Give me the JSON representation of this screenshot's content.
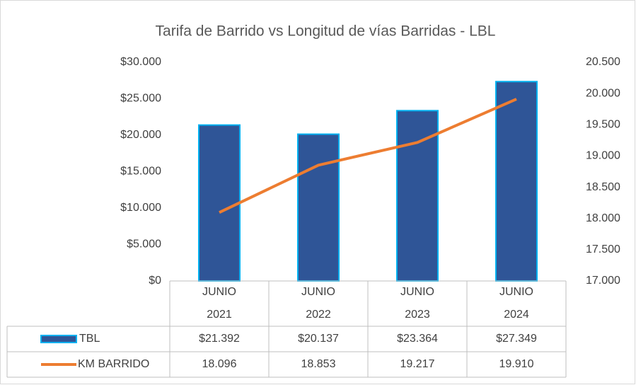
{
  "chart_data": {
    "type": "bar",
    "title": "Tarifa de Barrido vs Longitud de vías Barridas - LBL",
    "categories": [
      [
        "JUNIO",
        "2021"
      ],
      [
        "JUNIO",
        "2022"
      ],
      [
        "JUNIO",
        "2023"
      ],
      [
        "JUNIO",
        "2024"
      ]
    ],
    "series": [
      {
        "name": "TBL",
        "type": "bar",
        "color": "#2f5597",
        "edge_color": "#00b0f0",
        "values": [
          21392,
          20137,
          23364,
          27349
        ],
        "value_labels": [
          "$21.392",
          "$20.137",
          "$23.364",
          "$27.349"
        ]
      },
      {
        "name": "KM BARRIDO",
        "type": "line",
        "axis": "y2",
        "color": "#ed7d31",
        "values": [
          18096,
          18853,
          19217,
          19910
        ],
        "value_labels": [
          "18.096",
          "18.853",
          "19.217",
          "19.910"
        ]
      }
    ],
    "ylim": [
      0,
      30000
    ],
    "yticks": [
      {
        "value": 0,
        "label": "$0"
      },
      {
        "value": 5000,
        "label": "$5.000"
      },
      {
        "value": 10000,
        "label": "$10.000"
      },
      {
        "value": 15000,
        "label": "$15.000"
      },
      {
        "value": 20000,
        "label": "$20.000"
      },
      {
        "value": 25000,
        "label": "$25.000"
      },
      {
        "value": 30000,
        "label": "$30.000"
      }
    ],
    "y2lim": [
      17000,
      20500
    ],
    "y2ticks": [
      {
        "value": 17000,
        "label": "17.000"
      },
      {
        "value": 17500,
        "label": "17.500"
      },
      {
        "value": 18000,
        "label": "18.000"
      },
      {
        "value": 18500,
        "label": "18.500"
      },
      {
        "value": 19000,
        "label": "19.000"
      },
      {
        "value": 19500,
        "label": "19.500"
      },
      {
        "value": 20000,
        "label": "20.000"
      },
      {
        "value": 20500,
        "label": "20.500"
      }
    ],
    "data_table": true
  }
}
